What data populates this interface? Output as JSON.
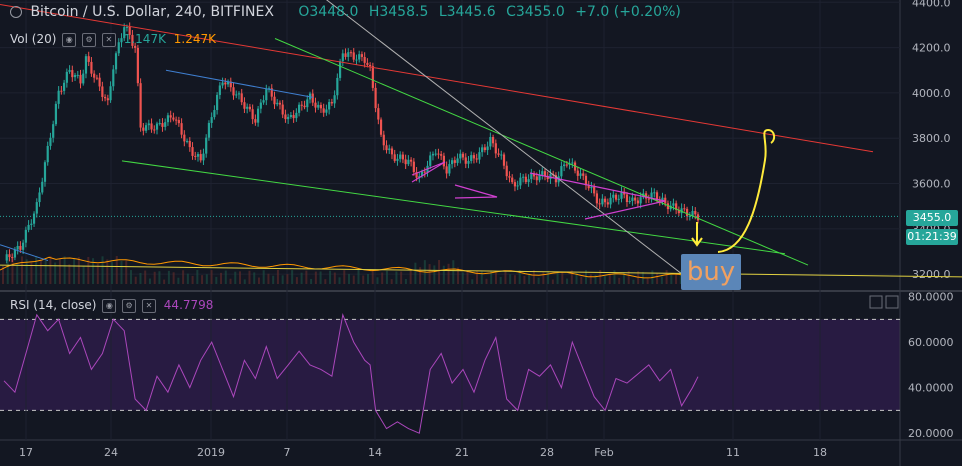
{
  "header": {
    "symbol": "Bitcoin / U.S. Dollar, 240, BITFINEX",
    "open": "O3448.0",
    "high": "H3458.5",
    "low": "L3445.6",
    "close": "C3455.0",
    "change": "+7.0 (+0.20%)"
  },
  "volume": {
    "label": "Vol (20)",
    "value1": "1.147K",
    "value2": "1.247K"
  },
  "rsi": {
    "label": "RSI (14, close)",
    "value": "44.7798"
  },
  "price_tag": {
    "price": "3455.0",
    "countdown": "01:21:39"
  },
  "annotation": {
    "buy_label": "buy"
  },
  "colors": {
    "up": "#26a69a",
    "down": "#ef5350",
    "rsi": "#ab47bc",
    "volume_ma": "#ff9800"
  },
  "chart_data": {
    "type": "candlestick",
    "price_axis": {
      "ticks": [
        "4400.0",
        "4200.0",
        "4000.0",
        "3800.0",
        "3600.0",
        "3400.0",
        "3200.0"
      ],
      "range": [
        3130,
        4410
      ]
    },
    "rsi_axis": {
      "ticks": [
        "80.0000",
        "60.0000",
        "40.0000",
        "20.0000"
      ],
      "range": [
        17,
        82
      ],
      "bands": [
        70,
        30
      ]
    },
    "time_axis": [
      "17",
      "24",
      "2019",
      "7",
      "14",
      "21",
      "28",
      "Feb",
      "11",
      "18"
    ],
    "price_path": [
      [
        0,
        3260
      ],
      [
        3,
        3320
      ],
      [
        6,
        3500
      ],
      [
        8,
        3750
      ],
      [
        10,
        4000
      ],
      [
        12,
        4100
      ],
      [
        14,
        4050
      ],
      [
        15,
        4150
      ],
      [
        17,
        4050
      ],
      [
        19,
        3950
      ],
      [
        20,
        4120
      ],
      [
        22,
        4300
      ],
      [
        24,
        4200
      ],
      [
        25,
        3850
      ],
      [
        28,
        3850
      ],
      [
        31,
        3900
      ],
      [
        34,
        3750
      ],
      [
        36,
        3700
      ],
      [
        38,
        3900
      ],
      [
        40,
        4060
      ],
      [
        43,
        3980
      ],
      [
        46,
        3880
      ],
      [
        48,
        4020
      ],
      [
        50,
        3950
      ],
      [
        52,
        3880
      ],
      [
        54,
        3930
      ],
      [
        56,
        3980
      ],
      [
        58,
        3920
      ],
      [
        60,
        3950
      ],
      [
        62,
        4180
      ],
      [
        64,
        4160
      ],
      [
        66,
        4150
      ],
      [
        67,
        4100
      ],
      [
        69,
        3800
      ],
      [
        71,
        3720
      ],
      [
        74,
        3700
      ],
      [
        76,
        3620
      ],
      [
        79,
        3750
      ],
      [
        81,
        3660
      ],
      [
        83,
        3720
      ],
      [
        85,
        3700
      ],
      [
        87,
        3730
      ],
      [
        89,
        3790
      ],
      [
        91,
        3710
      ],
      [
        93,
        3590
      ],
      [
        95,
        3620
      ],
      [
        97,
        3630
      ],
      [
        99,
        3640
      ],
      [
        101,
        3620
      ],
      [
        103,
        3700
      ],
      [
        105,
        3650
      ],
      [
        107,
        3590
      ],
      [
        109,
        3510
      ],
      [
        111,
        3530
      ],
      [
        113,
        3550
      ],
      [
        115,
        3520
      ],
      [
        117,
        3540
      ],
      [
        119,
        3550
      ],
      [
        121,
        3510
      ],
      [
        123,
        3490
      ],
      [
        125,
        3470
      ],
      [
        127,
        3455
      ]
    ],
    "rsi_path": [
      [
        0,
        43
      ],
      [
        2,
        38
      ],
      [
        4,
        55
      ],
      [
        6,
        72
      ],
      [
        8,
        65
      ],
      [
        10,
        70
      ],
      [
        12,
        55
      ],
      [
        14,
        62
      ],
      [
        16,
        48
      ],
      [
        18,
        55
      ],
      [
        20,
        70
      ],
      [
        22,
        65
      ],
      [
        24,
        35
      ],
      [
        26,
        30
      ],
      [
        28,
        45
      ],
      [
        30,
        38
      ],
      [
        32,
        50
      ],
      [
        34,
        40
      ],
      [
        36,
        52
      ],
      [
        38,
        60
      ],
      [
        40,
        48
      ],
      [
        42,
        36
      ],
      [
        44,
        52
      ],
      [
        46,
        44
      ],
      [
        48,
        58
      ],
      [
        50,
        44
      ],
      [
        52,
        50
      ],
      [
        54,
        56
      ],
      [
        56,
        50
      ],
      [
        58,
        48
      ],
      [
        60,
        45
      ],
      [
        62,
        72
      ],
      [
        64,
        60
      ],
      [
        66,
        52
      ],
      [
        67,
        50
      ],
      [
        68,
        30
      ],
      [
        70,
        22
      ],
      [
        72,
        25
      ],
      [
        74,
        22
      ],
      [
        76,
        20
      ],
      [
        78,
        48
      ],
      [
        80,
        55
      ],
      [
        82,
        42
      ],
      [
        84,
        48
      ],
      [
        86,
        38
      ],
      [
        88,
        52
      ],
      [
        90,
        62
      ],
      [
        92,
        35
      ],
      [
        94,
        30
      ],
      [
        96,
        48
      ],
      [
        98,
        45
      ],
      [
        100,
        50
      ],
      [
        102,
        40
      ],
      [
        104,
        60
      ],
      [
        106,
        48
      ],
      [
        108,
        36
      ],
      [
        110,
        30
      ],
      [
        112,
        44
      ],
      [
        114,
        42
      ],
      [
        116,
        46
      ],
      [
        118,
        50
      ],
      [
        120,
        43
      ],
      [
        122,
        48
      ],
      [
        124,
        32
      ],
      [
        126,
        40
      ],
      [
        127,
        44.8
      ]
    ],
    "annotations": [
      "red descending resistance line",
      "green falling wedge",
      "purple pennants",
      "yellow projected path",
      "buy box"
    ]
  }
}
